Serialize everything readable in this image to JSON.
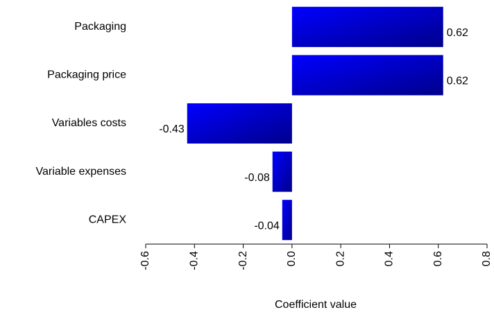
{
  "chart_data": {
    "type": "barh",
    "categories": [
      "Packaging",
      "Packaging price",
      "Variables costs",
      "Variable expenses",
      "CAPEX"
    ],
    "values": [
      0.62,
      0.62,
      -0.43,
      -0.08,
      -0.04
    ],
    "color": "#0000ff",
    "xlabel": "Coefficient value",
    "xlim": [
      -0.6,
      0.8
    ],
    "xticks": [
      -0.6,
      -0.4,
      -0.2,
      {
        "value": 0,
        "label": "0.0"
      },
      0.2,
      0.4,
      0.6,
      0.8
    ]
  }
}
